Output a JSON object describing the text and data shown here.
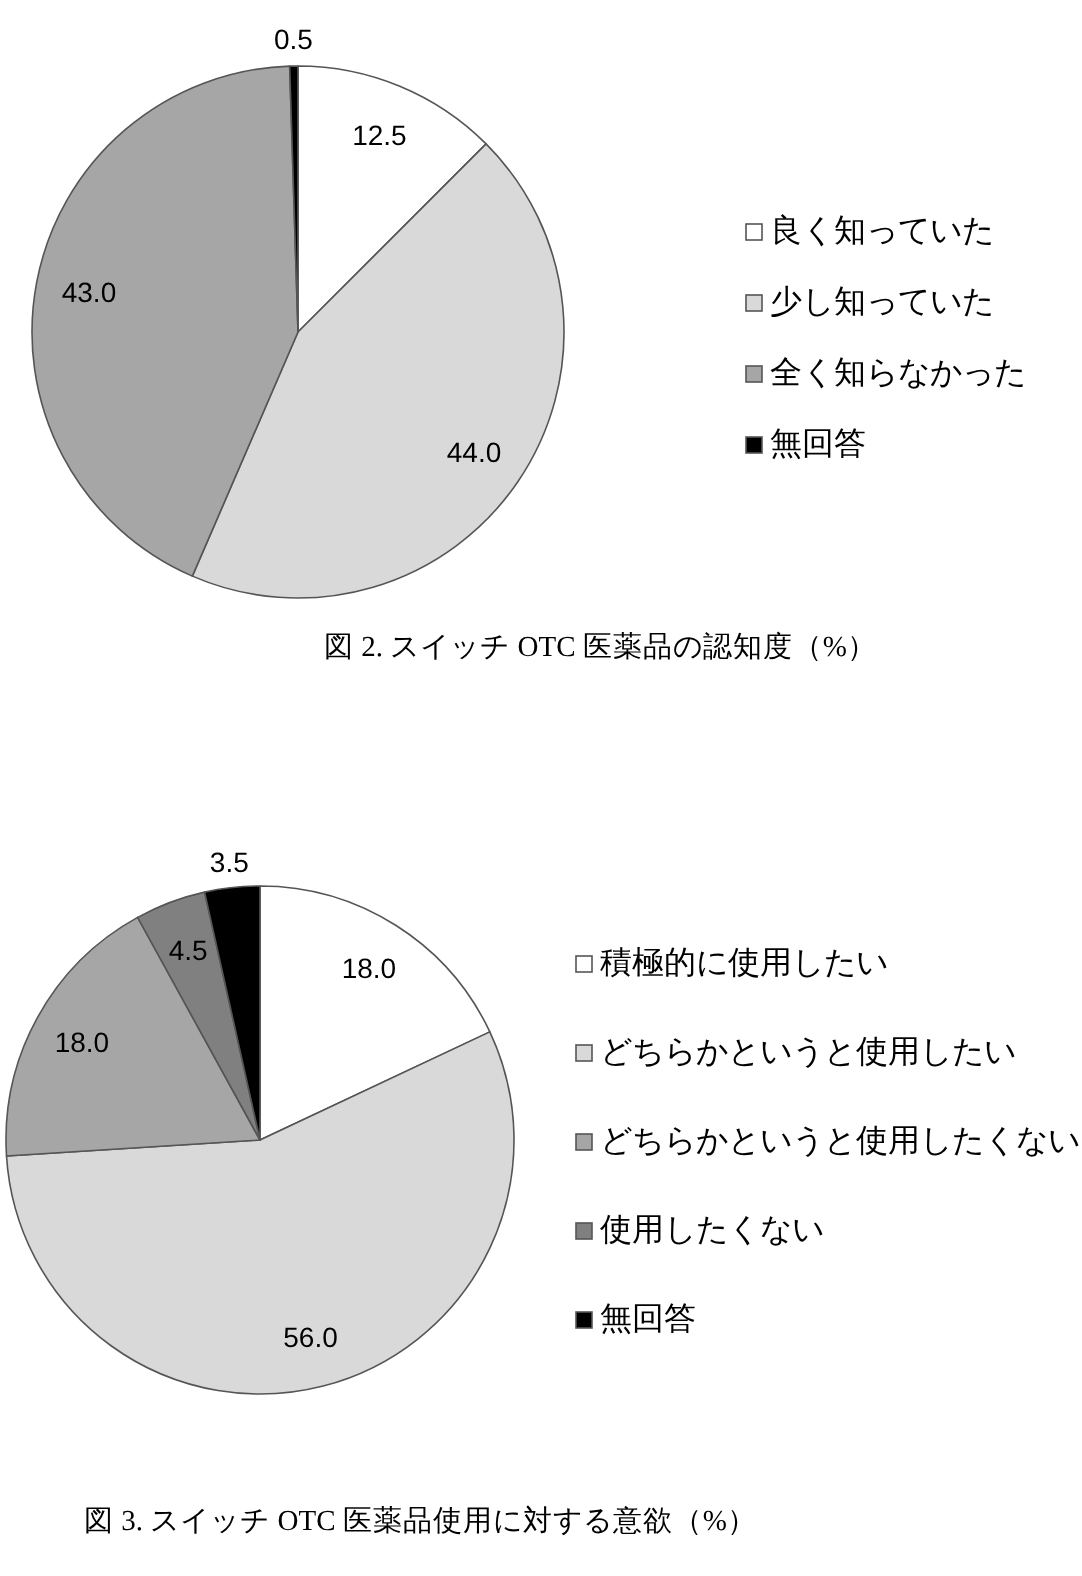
{
  "chart_data": [
    {
      "type": "pie",
      "categories": [
        "良く知っていた",
        "少し知っていた",
        "全く知らなかった",
        "無回答"
      ],
      "values": [
        12.5,
        44.0,
        43.0,
        0.5
      ],
      "colors": [
        "#ffffff",
        "#d9d9d9",
        "#a6a6a6",
        "#000000"
      ],
      "value_labels": [
        "12.5",
        "44.0",
        "43.0",
        "0.5"
      ],
      "legend": "right",
      "annotations": [
        "図 2. スイッチ OTC 医薬品の認知度（%）"
      ]
    },
    {
      "type": "pie",
      "categories": [
        "積極的に使用したい",
        "どちらかというと使用したい",
        "どちらかというと使用したくない",
        "使用したくない",
        "無回答"
      ],
      "values": [
        18.0,
        56.0,
        18.0,
        4.5,
        3.5
      ],
      "colors": [
        "#ffffff",
        "#d9d9d9",
        "#a6a6a6",
        "#808080",
        "#000000"
      ],
      "value_labels": [
        "18.0",
        "56.0",
        "18.0",
        "4.5",
        "3.5"
      ],
      "legend": "right",
      "annotations": [
        "図 3. スイッチ OTC 医薬品使用に対する意欲（%）"
      ]
    }
  ]
}
